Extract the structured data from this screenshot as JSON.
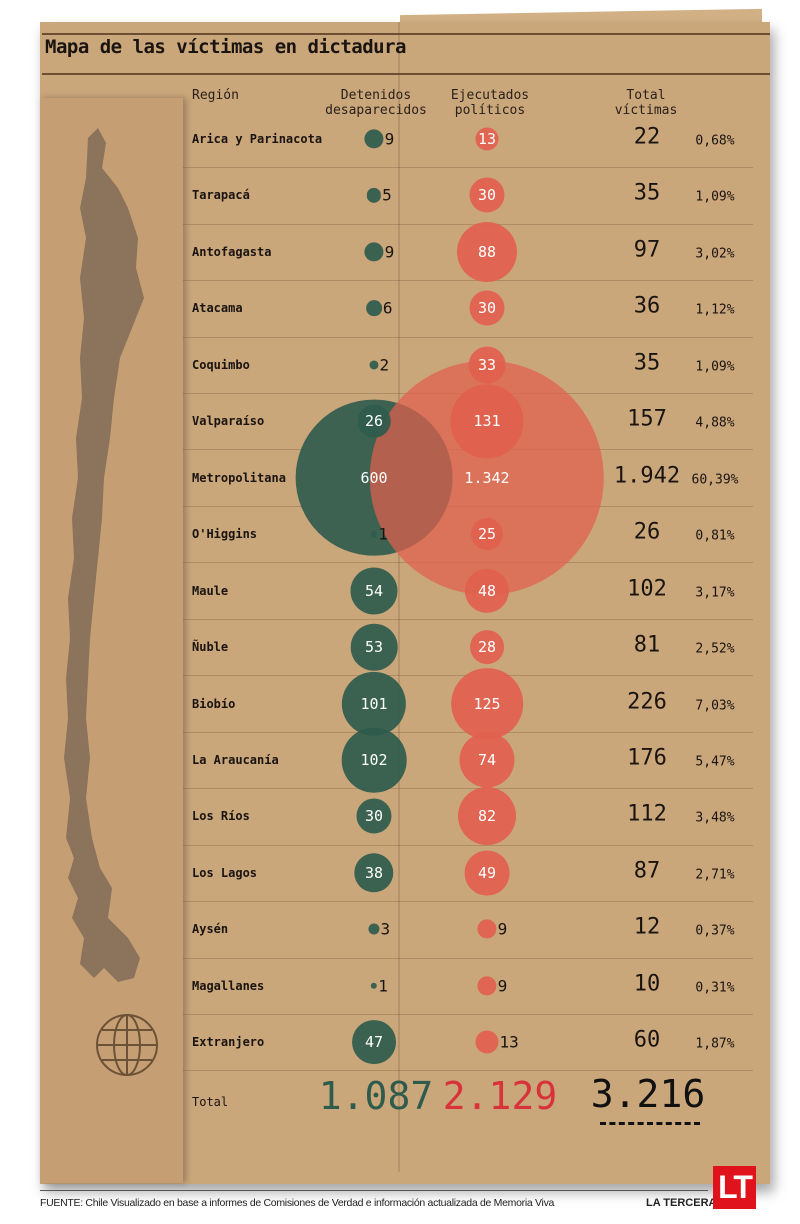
{
  "title": "Mapa de las víctimas en dictadura",
  "headers": {
    "region": "Región",
    "detenidos": [
      "Detenidos",
      "desaparecidos"
    ],
    "ejecutados": [
      "Ejecutados",
      "políticos"
    ],
    "total": [
      "Total",
      "víctimas"
    ]
  },
  "colors": {
    "detenidos": "#2f5b4d",
    "ejecutados": "#e2604e",
    "paper": "#caa67b",
    "map": "#8b735c"
  },
  "chart_data": {
    "type": "bubble-table",
    "rows": [
      {
        "region": "Arica y Parinacota",
        "detenidos": 9,
        "ejecutados": 13,
        "total": "22",
        "pct": "0,68%"
      },
      {
        "region": "Tarapacá",
        "detenidos": 5,
        "ejecutados": 30,
        "total": "35",
        "pct": "1,09%"
      },
      {
        "region": "Antofagasta",
        "detenidos": 9,
        "ejecutados": 88,
        "total": "97",
        "pct": "3,02%"
      },
      {
        "region": "Atacama",
        "detenidos": 6,
        "ejecutados": 30,
        "total": "36",
        "pct": "1,12%"
      },
      {
        "region": "Coquimbo",
        "detenidos": 2,
        "ejecutados": 33,
        "total": "35",
        "pct": "1,09%"
      },
      {
        "region": "Valparaíso",
        "detenidos": 26,
        "ejecutados": 131,
        "total": "157",
        "pct": "4,88%"
      },
      {
        "region": "Metropolitana",
        "detenidos": 600,
        "ejecutados": 1342,
        "total": "1.942",
        "pct": "60,39%"
      },
      {
        "region": "O'Higgins",
        "detenidos": 1,
        "ejecutados": 25,
        "total": "26",
        "pct": "0,81%"
      },
      {
        "region": "Maule",
        "detenidos": 54,
        "ejecutados": 48,
        "total": "102",
        "pct": "3,17%"
      },
      {
        "region": "Ñuble",
        "detenidos": 53,
        "ejecutados": 28,
        "total": "81",
        "pct": "2,52%"
      },
      {
        "region": "Biobío",
        "detenidos": 101,
        "ejecutados": 125,
        "total": "226",
        "pct": "7,03%"
      },
      {
        "region": "La Araucanía",
        "detenidos": 102,
        "ejecutados": 74,
        "total": "176",
        "pct": "5,47%"
      },
      {
        "region": "Los Ríos",
        "detenidos": 30,
        "ejecutados": 82,
        "total": "112",
        "pct": "3,48%"
      },
      {
        "region": "Los Lagos",
        "detenidos": 38,
        "ejecutados": 49,
        "total": "87",
        "pct": "2,71%"
      },
      {
        "region": "Aysén",
        "detenidos": 3,
        "ejecutados": 9,
        "total": "12",
        "pct": "0,37%"
      },
      {
        "region": "Magallanes",
        "detenidos": 1,
        "ejecutados": 9,
        "total": "10",
        "pct": "0,31%"
      },
      {
        "region": "Extranjero",
        "detenidos": 47,
        "ejecutados": 13,
        "total": "60",
        "pct": "1,87%"
      }
    ],
    "totals": {
      "label": "Total",
      "detenidos": "1.087",
      "ejecutados": "2.129",
      "total": "3.216"
    }
  },
  "labels": {
    "rows": [
      {
        "d": "9",
        "e": "13"
      },
      {
        "d": "5",
        "e": "30"
      },
      {
        "d": "9",
        "e": "88"
      },
      {
        "d": "6",
        "e": "30"
      },
      {
        "d": "2",
        "e": "33"
      },
      {
        "d": "26",
        "e": "131"
      },
      {
        "d": "600",
        "e": "1.342"
      },
      {
        "d": "1",
        "e": "25"
      },
      {
        "d": "54",
        "e": "48"
      },
      {
        "d": "53",
        "e": "28"
      },
      {
        "d": "101",
        "e": "125"
      },
      {
        "d": "102",
        "e": "74"
      },
      {
        "d": "30",
        "e": "82"
      },
      {
        "d": "38",
        "e": "49"
      },
      {
        "d": "3",
        "e": "9"
      },
      {
        "d": "1",
        "e": "9"
      },
      {
        "d": "47",
        "e": "13"
      }
    ]
  },
  "icons": {
    "map": "chile-map-icon",
    "globe": "globe-icon"
  },
  "footer": {
    "source": "FUENTE: Chile Visualizado en base a informes de Comisiones de Verdad e información actualizada de Memoria Viva",
    "brand": "LA TERCERA",
    "logo": "LT"
  }
}
